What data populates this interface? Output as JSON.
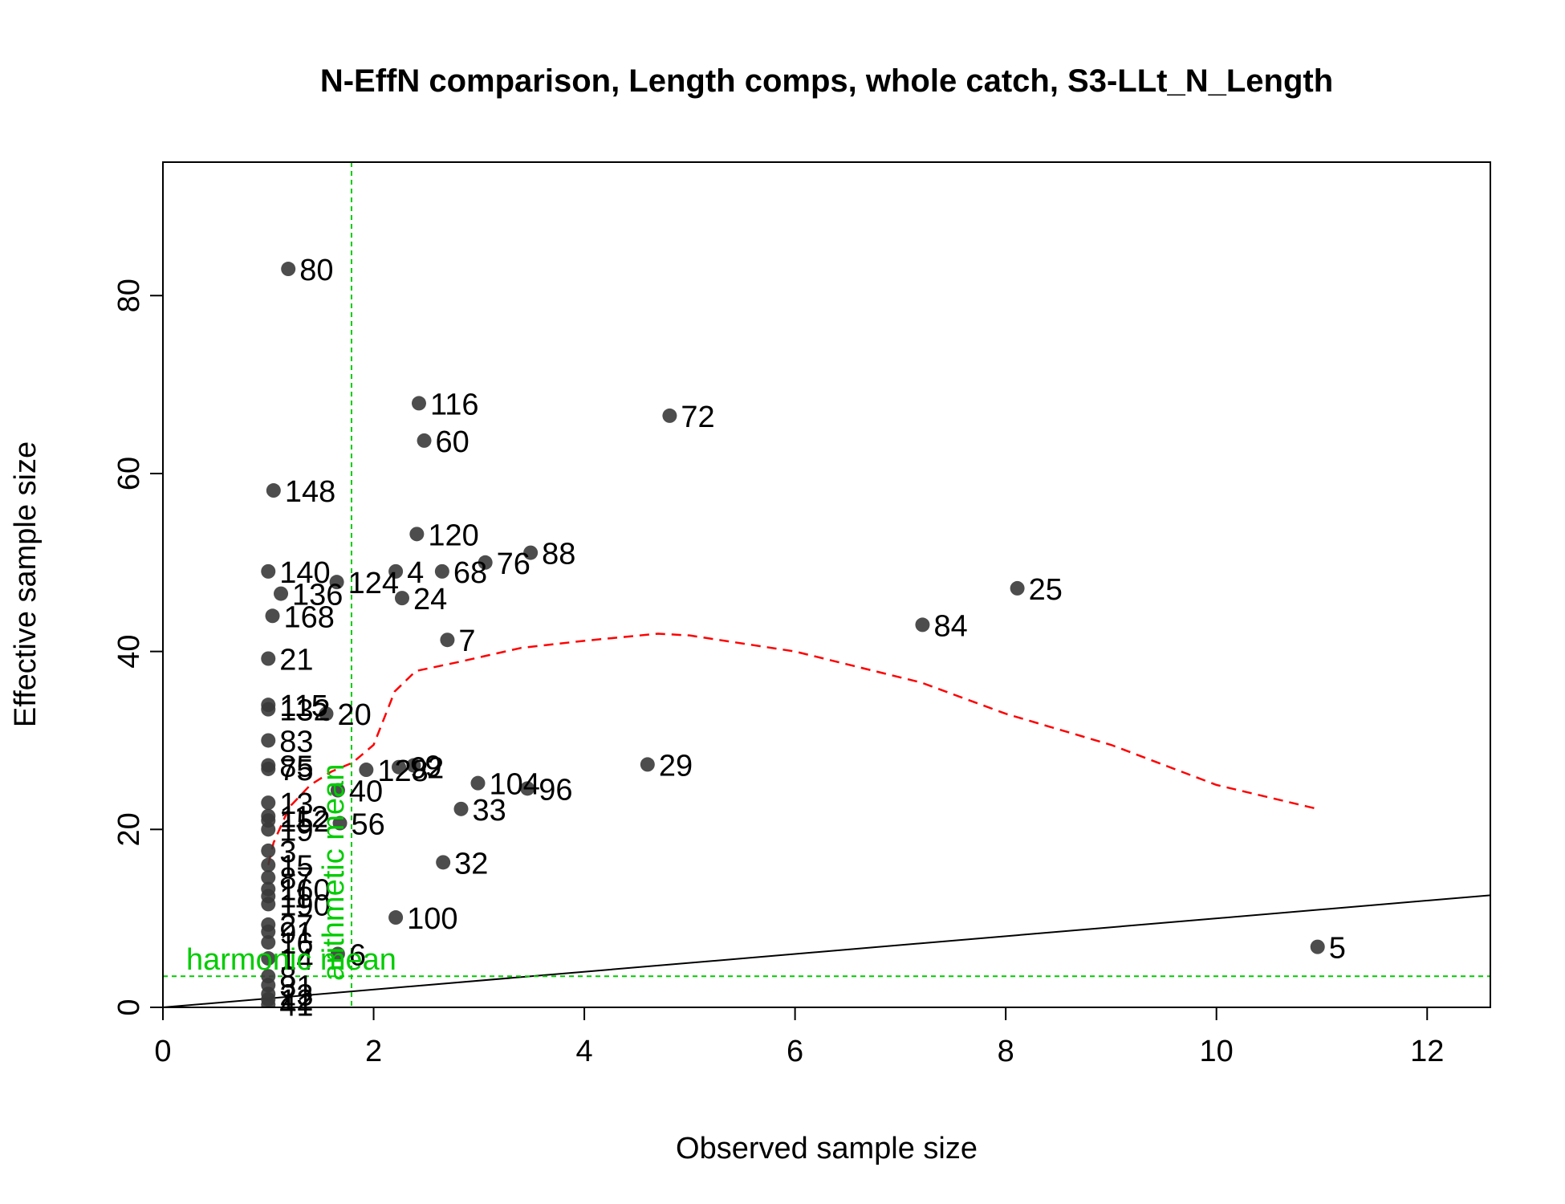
{
  "chart_data": {
    "type": "scatter",
    "title": "N-EffN comparison, Length comps, whole catch, S3-LLt_N_Length",
    "xlabel": "Observed sample size",
    "ylabel": "Effective sample size",
    "xlim": [
      0,
      12.6
    ],
    "ylim": [
      0,
      95
    ],
    "x_ticks": [
      0,
      2,
      4,
      6,
      8,
      10,
      12
    ],
    "y_ticks": [
      0,
      20,
      40,
      60,
      80
    ],
    "grid": false,
    "legend": "none",
    "point_color": "#3a3a3a",
    "points": [
      {
        "x": 1.19,
        "y": 83.0,
        "label": "80"
      },
      {
        "x": 2.43,
        "y": 67.9,
        "label": "116"
      },
      {
        "x": 4.81,
        "y": 66.5,
        "label": "72"
      },
      {
        "x": 2.48,
        "y": 63.7,
        "label": "60"
      },
      {
        "x": 1.05,
        "y": 58.1,
        "label": "148"
      },
      {
        "x": 2.41,
        "y": 53.2,
        "label": "120"
      },
      {
        "x": 3.49,
        "y": 51.1,
        "label": "88"
      },
      {
        "x": 3.06,
        "y": 50.0,
        "label": "76"
      },
      {
        "x": 1.0,
        "y": 49.0,
        "label": "140"
      },
      {
        "x": 2.21,
        "y": 49.0,
        "label": "4"
      },
      {
        "x": 2.65,
        "y": 49.0,
        "label": "68"
      },
      {
        "x": 1.65,
        "y": 47.8,
        "label": "124"
      },
      {
        "x": 8.11,
        "y": 47.1,
        "label": "25"
      },
      {
        "x": 1.12,
        "y": 46.5,
        "label": "136"
      },
      {
        "x": 2.27,
        "y": 46.0,
        "label": "24"
      },
      {
        "x": 1.04,
        "y": 44.0,
        "label": "168"
      },
      {
        "x": 7.21,
        "y": 43.0,
        "label": "84"
      },
      {
        "x": 2.7,
        "y": 41.3,
        "label": "7"
      },
      {
        "x": 1.0,
        "y": 39.2,
        "label": "21"
      },
      {
        "x": 1.0,
        "y": 34.0,
        "label": "115"
      },
      {
        "x": 1.0,
        "y": 33.5,
        "label": "132"
      },
      {
        "x": 1.55,
        "y": 33.0,
        "label": "20"
      },
      {
        "x": 1.0,
        "y": 30.0,
        "label": "83"
      },
      {
        "x": 4.6,
        "y": 27.3,
        "label": "29"
      },
      {
        "x": 1.0,
        "y": 27.2,
        "label": "85"
      },
      {
        "x": 2.38,
        "y": 27.2,
        "label": "9"
      },
      {
        "x": 1.0,
        "y": 26.8,
        "label": "75"
      },
      {
        "x": 2.24,
        "y": 27.0,
        "label": "92"
      },
      {
        "x": 1.93,
        "y": 26.7,
        "label": "128"
      },
      {
        "x": 2.99,
        "y": 25.2,
        "label": "104"
      },
      {
        "x": 3.46,
        "y": 24.6,
        "label": "96"
      },
      {
        "x": 1.66,
        "y": 24.4,
        "label": "40"
      },
      {
        "x": 1.0,
        "y": 23.0,
        "label": "13"
      },
      {
        "x": 2.83,
        "y": 22.3,
        "label": "33"
      },
      {
        "x": 1.0,
        "y": 21.5,
        "label": "112"
      },
      {
        "x": 1.0,
        "y": 21.0,
        "label": "152"
      },
      {
        "x": 1.68,
        "y": 20.7,
        "label": "56"
      },
      {
        "x": 1.0,
        "y": 20.0,
        "label": "19"
      },
      {
        "x": 1.0,
        "y": 17.6,
        "label": "3"
      },
      {
        "x": 2.66,
        "y": 16.3,
        "label": "32"
      },
      {
        "x": 1.0,
        "y": 16.0,
        "label": "15"
      },
      {
        "x": 1.0,
        "y": 14.6,
        "label": "87"
      },
      {
        "x": 1.0,
        "y": 13.3,
        "label": "160"
      },
      {
        "x": 1.0,
        "y": 12.5,
        "label": "11"
      },
      {
        "x": 1.0,
        "y": 11.6,
        "label": "190"
      },
      {
        "x": 2.21,
        "y": 10.1,
        "label": "100"
      },
      {
        "x": 1.0,
        "y": 9.3,
        "label": "27"
      },
      {
        "x": 1.0,
        "y": 8.5,
        "label": "91"
      },
      {
        "x": 1.0,
        "y": 7.3,
        "label": "16"
      },
      {
        "x": 10.96,
        "y": 6.8,
        "label": "5"
      },
      {
        "x": 1.66,
        "y": 6.0,
        "label": "6"
      },
      {
        "x": 1.0,
        "y": 5.5,
        "label": "14"
      },
      {
        "x": 1.0,
        "y": 3.5,
        "label": "8"
      },
      {
        "x": 1.0,
        "y": 2.5,
        "label": "31"
      },
      {
        "x": 1.0,
        "y": 1.5,
        "label": "23"
      },
      {
        "x": 1.0,
        "y": 0.9,
        "label": "12"
      },
      {
        "x": 1.0,
        "y": 0.3,
        "label": "41"
      }
    ],
    "identity_line": {
      "color": "#000000"
    },
    "smoother": {
      "color": "#ff0000",
      "x": [
        1.0,
        1.05,
        1.2,
        1.4,
        1.6,
        1.8,
        2.0,
        2.2,
        2.4,
        2.8,
        3.4,
        4.0,
        4.7,
        5.0,
        6.0,
        7.2,
        8.0,
        9.0,
        10.0,
        10.96
      ],
      "y": [
        16.0,
        18.5,
        22.5,
        25.0,
        26.5,
        27.5,
        29.5,
        35.5,
        37.8,
        38.8,
        40.4,
        41.2,
        42.0,
        41.8,
        40.0,
        36.5,
        33.0,
        29.5,
        25.0,
        22.3
      ]
    },
    "arithmetic_mean": {
      "label": "arithmetic mean",
      "x": 1.79,
      "color": "#00cc00"
    },
    "harmonic_mean": {
      "label": "harmonic mean",
      "y": 3.5,
      "color": "#00cc00"
    }
  }
}
